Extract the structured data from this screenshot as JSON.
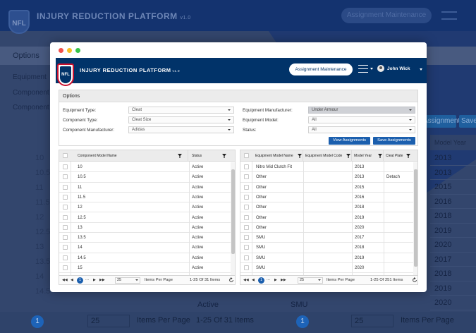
{
  "app": {
    "title": "INJURY REDUCTION PLATFORM",
    "version": "v1.0",
    "logo_text": "NFL",
    "assignment_button": "Assignment Maintenance",
    "user_name": "John Wick"
  },
  "background": {
    "options_label": "Options",
    "labels": [
      "Equipment",
      "Component",
      "Component"
    ],
    "assign_button": "Assignments",
    "save_button": "Save",
    "model_year_header": "Model Year",
    "model_years": [
      "2013",
      "2013",
      "2015",
      "2016",
      "2018",
      "2019",
      "2020",
      "2017",
      "2018",
      "2019",
      "2020"
    ],
    "left_numbers": [
      "10",
      "10.5",
      "11",
      "11.5",
      "12",
      "12.5",
      "13",
      "13.5",
      "14",
      "14.5"
    ],
    "active_text": "Active",
    "smu_text": "SMU",
    "pager": {
      "page": "1",
      "size": "25",
      "items_per_page": "Items Per Page",
      "range_left": "1-25 Of 31 Items",
      "range_right": "1-25 Of 251 Items"
    }
  },
  "options": {
    "title": "Options",
    "fields": [
      {
        "label": "Equipment Type:",
        "value": "Cleat"
      },
      {
        "label": "Component Type:",
        "value": "Cleat Size"
      },
      {
        "label": "Component Manufacturer:",
        "value": "Adidas"
      },
      {
        "label": "Equipment Manufacturer:",
        "value": "Under Armour"
      },
      {
        "label": "Equipment Model:",
        "value": "All"
      },
      {
        "label": "Status:",
        "value": "All"
      }
    ],
    "view_button": "View Assignments",
    "save_button": "Save Assignments"
  },
  "left_table": {
    "headers": [
      "Component Model Name",
      "Status"
    ],
    "rows": [
      {
        "name": "10",
        "status": "Active"
      },
      {
        "name": "10.5",
        "status": "Active"
      },
      {
        "name": "11",
        "status": "Active"
      },
      {
        "name": "11.5",
        "status": "Active"
      },
      {
        "name": "12",
        "status": "Active"
      },
      {
        "name": "12.5",
        "status": "Active"
      },
      {
        "name": "13",
        "status": "Active"
      },
      {
        "name": "13.5",
        "status": "Active"
      },
      {
        "name": "14",
        "status": "Active"
      },
      {
        "name": "14.5",
        "status": "Active"
      },
      {
        "name": "15",
        "status": "Active"
      }
    ],
    "pager": {
      "page": "1",
      "dots": "...",
      "size": "25",
      "items_per_page": "Items Per Page",
      "range": "1-25 Of 31 Items"
    }
  },
  "right_table": {
    "headers": [
      "Equipment Model Name",
      "Equipment Model Code",
      "Model Year",
      "Cleat Plate"
    ],
    "rows": [
      {
        "name": "Nitro Mid Clutch Fit",
        "code": "",
        "year": "2013",
        "plate": ""
      },
      {
        "name": "Other",
        "code": "",
        "year": "2013",
        "plate": "Detach"
      },
      {
        "name": "Other",
        "code": "",
        "year": "2015",
        "plate": ""
      },
      {
        "name": "Other",
        "code": "",
        "year": "2016",
        "plate": ""
      },
      {
        "name": "Other",
        "code": "",
        "year": "2018",
        "plate": ""
      },
      {
        "name": "Other",
        "code": "",
        "year": "2019",
        "plate": ""
      },
      {
        "name": "Other",
        "code": "",
        "year": "2020",
        "plate": ""
      },
      {
        "name": "SMU",
        "code": "",
        "year": "2017",
        "plate": ""
      },
      {
        "name": "SMU",
        "code": "",
        "year": "2018",
        "plate": ""
      },
      {
        "name": "SMU",
        "code": "",
        "year": "2019",
        "plate": ""
      },
      {
        "name": "SMU",
        "code": "",
        "year": "2020",
        "plate": ""
      }
    ],
    "pager": {
      "page": "1",
      "dots": "...",
      "size": "25",
      "items_per_page": "Items Per Page",
      "range": "1-25 Of 251 Items"
    }
  },
  "colors": {
    "brand_navy": "#013369",
    "accent_blue": "#1b5fae",
    "nfl_red": "#c8102e"
  }
}
